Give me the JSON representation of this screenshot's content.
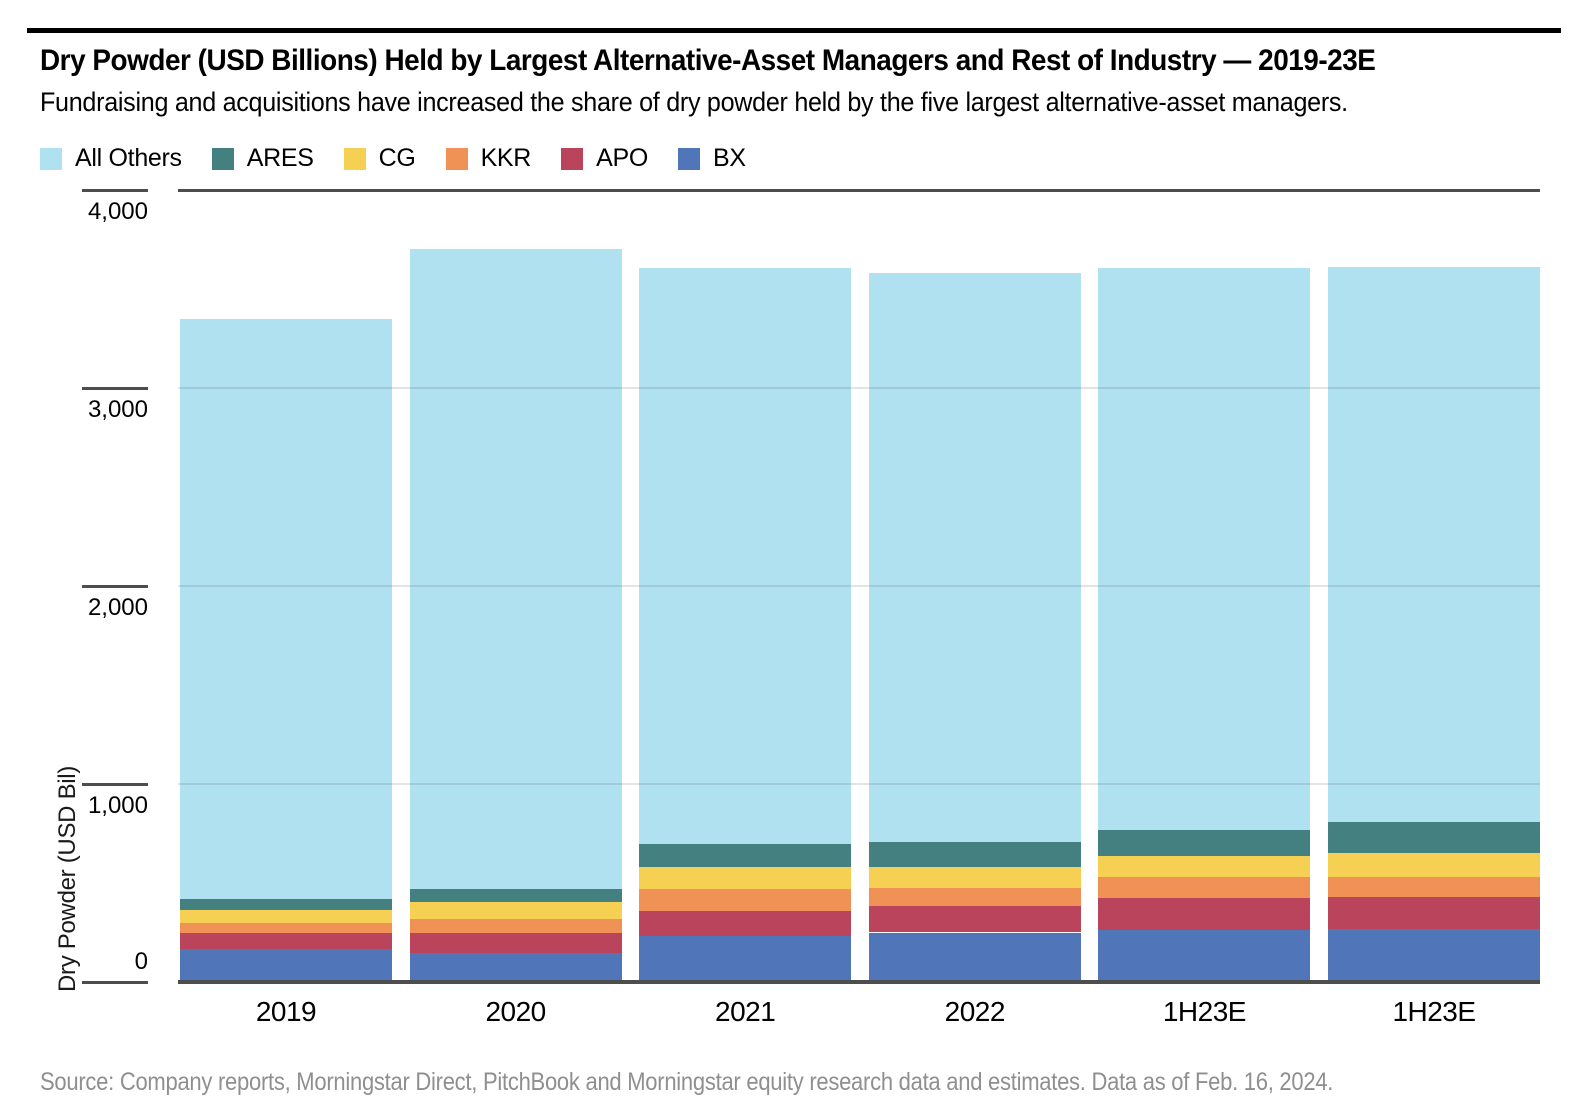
{
  "chart_data": {
    "type": "bar",
    "stacked": true,
    "title": "Dry Powder (USD Billions) Held by Largest Alternative-Asset Managers and Rest of Industry — 2019-23E",
    "subtitle": "Fundraising and acquisitions have increased the share of dry powder held by the five largest alternative-asset managers.",
    "source_note": "Source: Company reports, Morningstar Direct, PitchBook and Morningstar equity research data and estimates. Data as of Feb. 16, 2024.",
    "ylabel": "Dry Powder (USD Bil)",
    "xlabel": "",
    "units": "USD Billions",
    "ylim": [
      0,
      4000
    ],
    "grid": true,
    "legend_position": "top-left",
    "yticks": [
      {
        "value": 0,
        "label": "0"
      },
      {
        "value": 1000,
        "label": "1,000"
      },
      {
        "value": 2000,
        "label": "2,000"
      },
      {
        "value": 3000,
        "label": "3,000"
      },
      {
        "value": 4000,
        "label": "4,000"
      }
    ],
    "categories": [
      "2019",
      "2020",
      "2021",
      "2022",
      "1H23E",
      "1H23E"
    ],
    "series": [
      {
        "name": "BX",
        "color": "#5075B8",
        "values": [
          165,
          148,
          230,
          250,
          264,
          266
        ]
      },
      {
        "name": "APO",
        "color": "#B9445C",
        "values": [
          82,
          101,
          131,
          135,
          160,
          163
        ]
      },
      {
        "name": "KKR",
        "color": "#F09255",
        "values": [
          51,
          71,
          110,
          89,
          104,
          101
        ]
      },
      {
        "name": "CG",
        "color": "#F5D052",
        "values": [
          68,
          84,
          108,
          109,
          106,
          121
        ]
      },
      {
        "name": "ARES",
        "color": "#448080",
        "values": [
          51,
          67,
          118,
          126,
          135,
          158
        ]
      },
      {
        "name": "All Others",
        "color": "#AFE1F0",
        "values": [
          2933,
          3229,
          2908,
          2871,
          2836,
          2801
        ]
      }
    ],
    "legend_order": [
      "All Others",
      "ARES",
      "CG",
      "KKR",
      "APO",
      "BX"
    ],
    "totals_usd_bil": [
      3350,
      3700,
      3605,
      3580,
      3605,
      3610
    ]
  }
}
